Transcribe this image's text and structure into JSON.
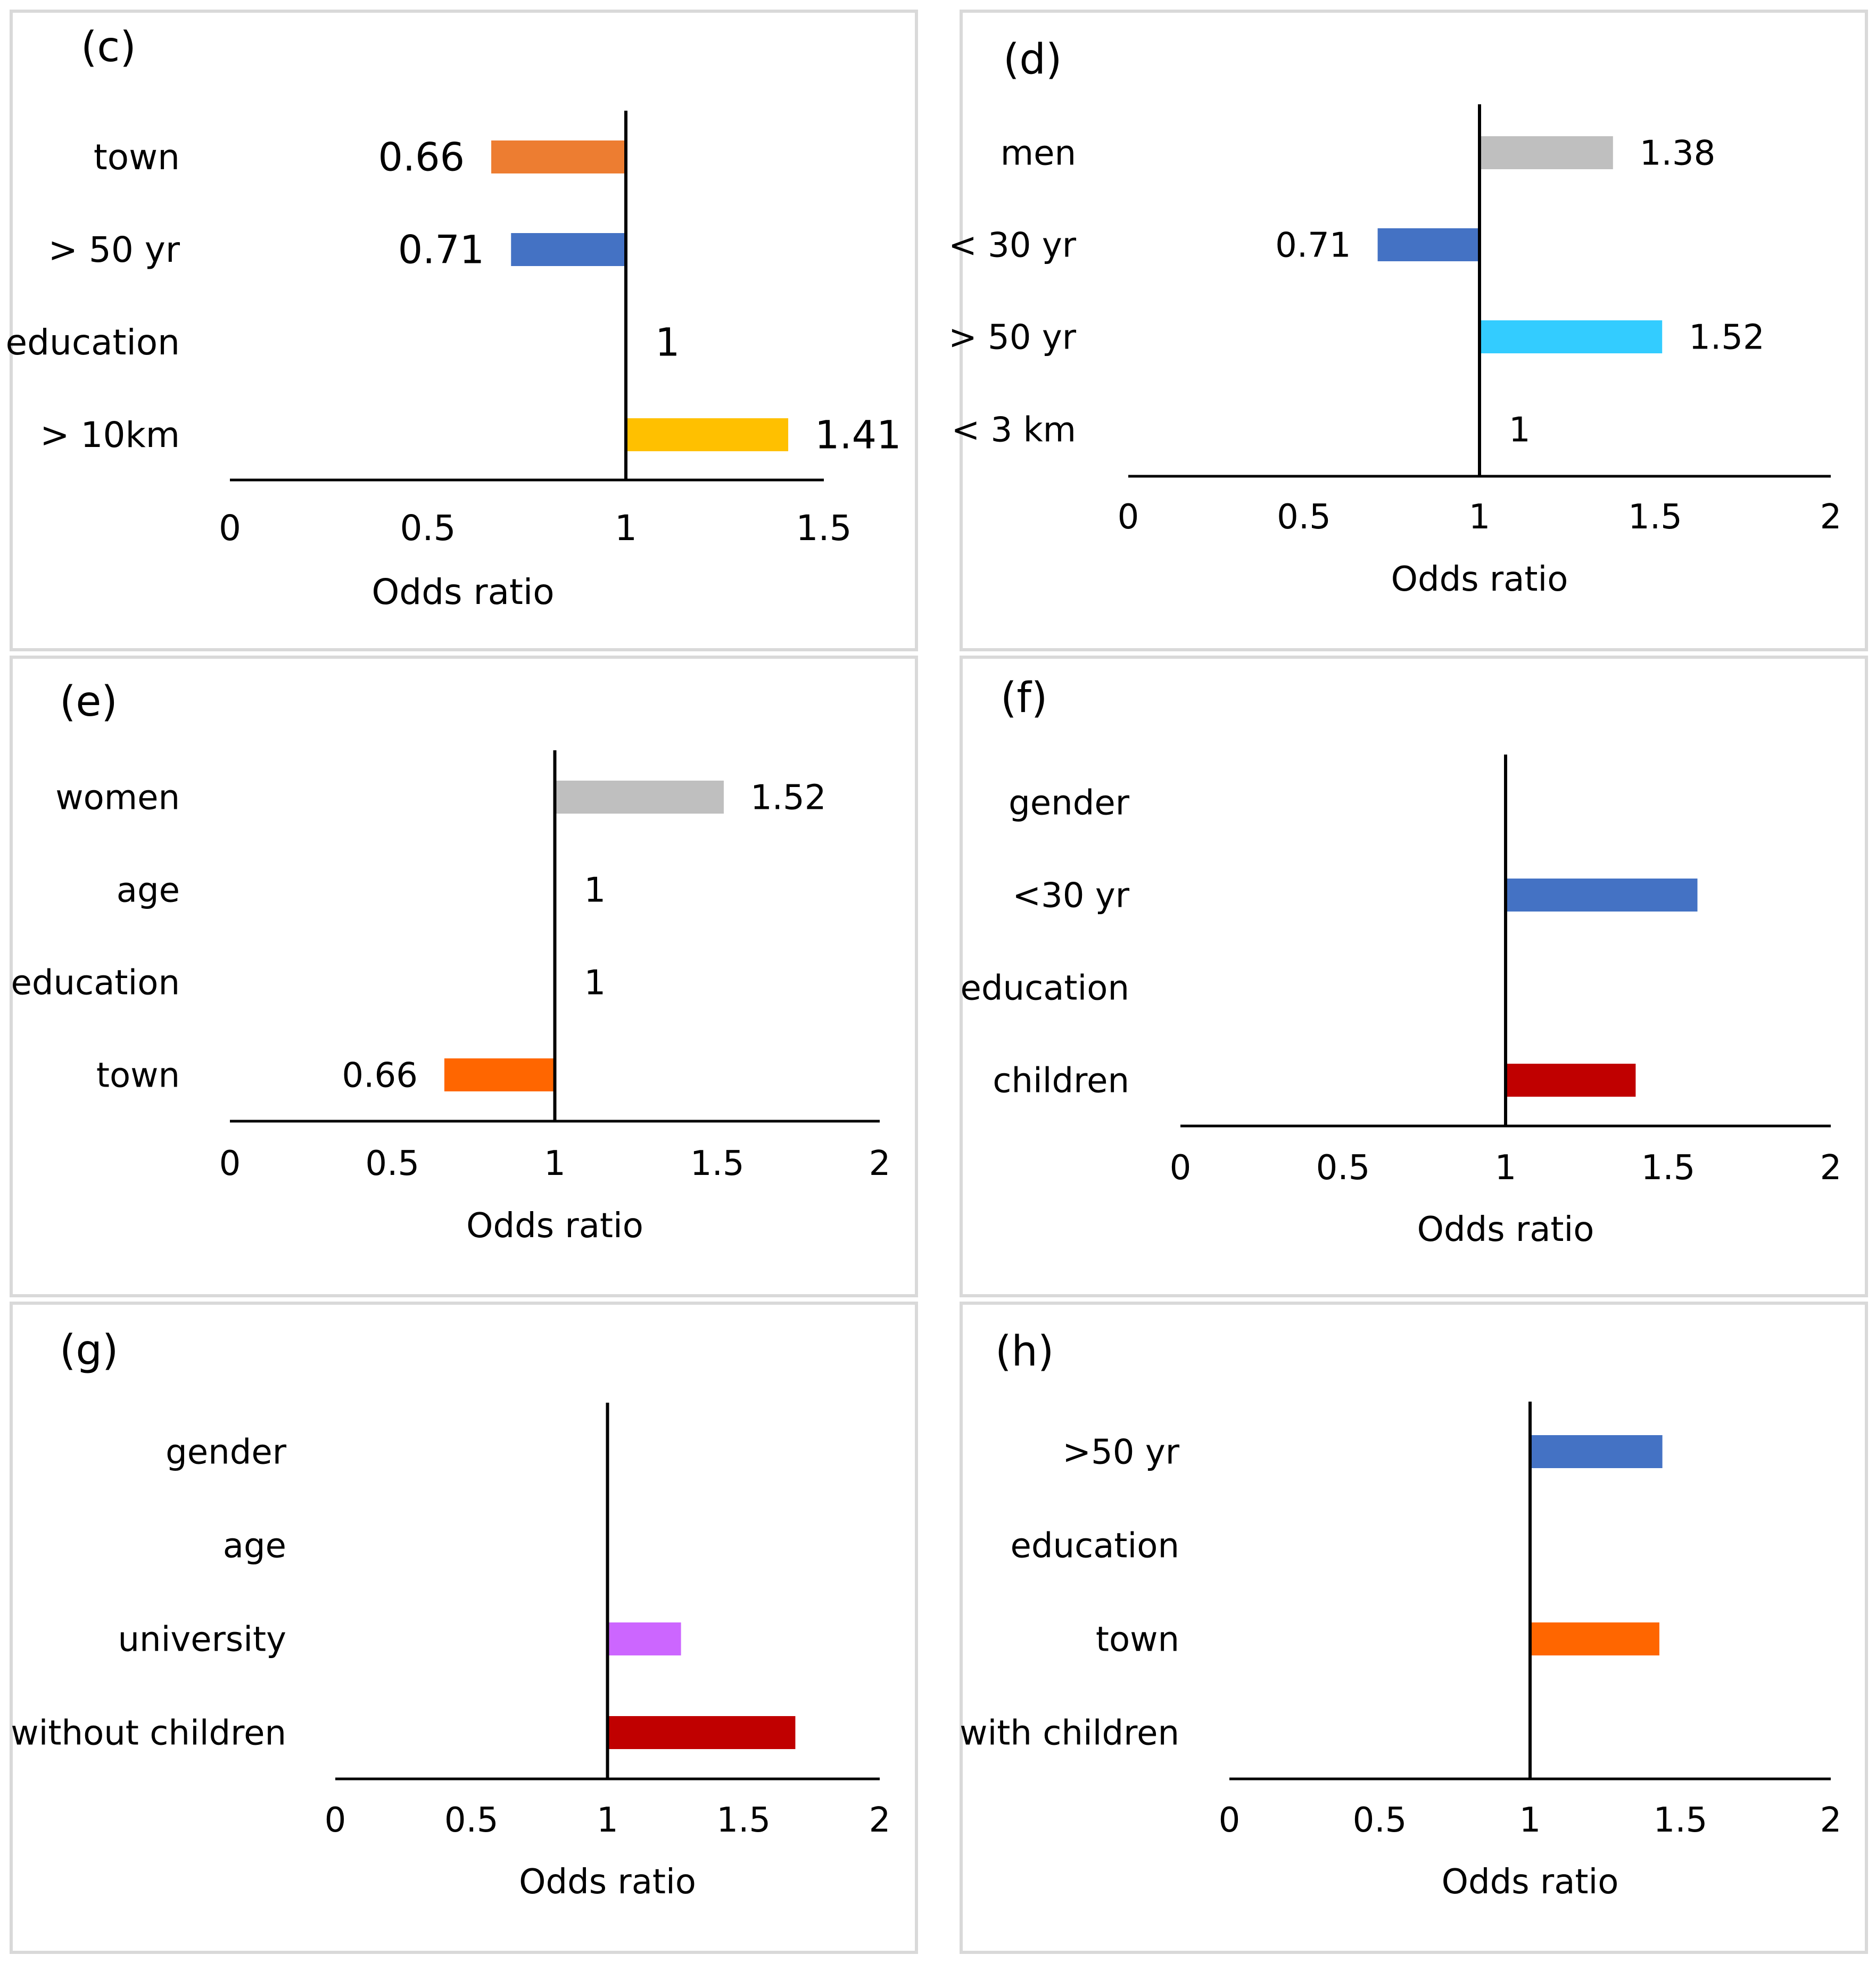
{
  "chart_data": [
    {
      "type": "bar",
      "orientation": "horizontal",
      "panel_label": "(c)",
      "xlabel": "Odds ratio",
      "xlim": [
        0,
        1.5
      ],
      "xticks": [
        "0",
        "0.5",
        "1",
        "1.5"
      ],
      "tick_values": [
        0,
        0.5,
        1,
        1.5
      ],
      "reference_value": 1,
      "categories": [
        "town",
        "> 50 yr",
        "education",
        "> 10km"
      ],
      "values": [
        0.66,
        0.71,
        1,
        1.41
      ],
      "data_labels": [
        "0.66",
        "0.71",
        "1",
        "1.41"
      ],
      "colors": [
        "#ed7d31",
        "#4472c4",
        "#000000",
        "#ffc000"
      ]
    },
    {
      "type": "bar",
      "orientation": "horizontal",
      "panel_label": "(d)",
      "xlabel": "Odds ratio",
      "xlim": [
        0,
        2
      ],
      "xticks": [
        "0",
        "0.5",
        "1",
        "1.5",
        "2"
      ],
      "tick_values": [
        0,
        0.5,
        1,
        1.5,
        2
      ],
      "reference_value": 1,
      "categories": [
        "men",
        "< 30 yr",
        "> 50 yr",
        "< 3 km"
      ],
      "values": [
        1.38,
        0.71,
        1.52,
        1
      ],
      "data_labels": [
        "1.38",
        "0.71",
        "1.52",
        "1"
      ],
      "colors": [
        "#bfbfbf",
        "#4472c4",
        "#33ccff",
        "#000000"
      ]
    },
    {
      "type": "bar",
      "orientation": "horizontal",
      "panel_label": "(e)",
      "xlabel": "Odds ratio",
      "xlim": [
        0,
        2
      ],
      "xticks": [
        "0",
        "0.5",
        "1",
        "1.5",
        "2"
      ],
      "tick_values": [
        0,
        0.5,
        1,
        1.5,
        2
      ],
      "reference_value": 1,
      "categories": [
        "women",
        "age",
        "education",
        "town"
      ],
      "values": [
        1.52,
        1,
        1,
        0.66
      ],
      "data_labels": [
        "1.52",
        "1",
        "1",
        "0.66"
      ],
      "colors": [
        "#bfbfbf",
        "#000000",
        "#000000",
        "#ff6600"
      ]
    },
    {
      "type": "bar",
      "orientation": "horizontal",
      "panel_label": "(f)",
      "xlabel": "Odds ratio",
      "xlim": [
        0,
        2
      ],
      "xticks": [
        "0",
        "0.5",
        "1",
        "1.5",
        "2"
      ],
      "tick_values": [
        0,
        0.5,
        1,
        1.5,
        2
      ],
      "reference_value": 1,
      "categories": [
        "gender",
        "<30 yr",
        "education",
        "children"
      ],
      "values": [
        1,
        1.59,
        1,
        1.4
      ],
      "data_labels": [
        "",
        "",
        "",
        ""
      ],
      "colors": [
        "#000000",
        "#4472c4",
        "#000000",
        "#c00000"
      ]
    },
    {
      "type": "bar",
      "orientation": "horizontal",
      "panel_label": "(g)",
      "xlabel": "Odds ratio",
      "xlim": [
        0,
        2
      ],
      "xticks": [
        "0",
        "0.5",
        "1",
        "1.5",
        "2"
      ],
      "tick_values": [
        0,
        0.5,
        1,
        1.5,
        2
      ],
      "reference_value": 1,
      "categories": [
        "gender",
        "age",
        "university",
        "without children"
      ],
      "values": [
        1,
        1,
        1.27,
        1.69
      ],
      "data_labels": [
        "",
        "",
        "",
        ""
      ],
      "colors": [
        "#000000",
        "#000000",
        "#cc66ff",
        "#c00000"
      ]
    },
    {
      "type": "bar",
      "orientation": "horizontal",
      "panel_label": "(h)",
      "xlabel": "Odds ratio",
      "xlim": [
        0,
        2
      ],
      "xticks": [
        "0",
        "0.5",
        "1",
        "1.5",
        "2"
      ],
      "tick_values": [
        0,
        0.5,
        1,
        1.5,
        2
      ],
      "reference_value": 1,
      "categories": [
        ">50 yr",
        "education",
        "town",
        "with children"
      ],
      "values": [
        1.44,
        1,
        1.43,
        1
      ],
      "data_labels": [
        "",
        "",
        "",
        ""
      ],
      "colors": [
        "#4472c4",
        "#000000",
        "#ff6600",
        "#000000"
      ]
    }
  ]
}
